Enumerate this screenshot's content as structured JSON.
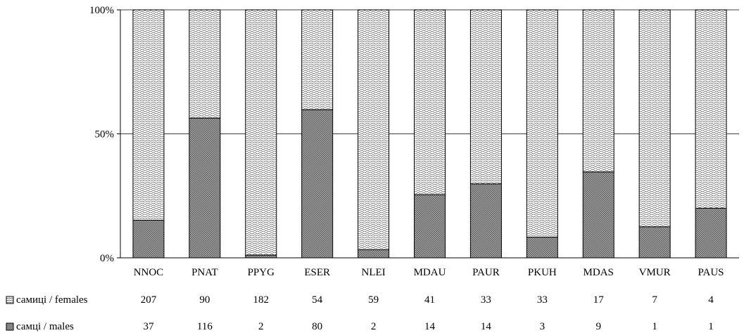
{
  "chart_data": {
    "type": "bar",
    "stacked": "percent",
    "categories": [
      "NNOC",
      "PNAT",
      "PPYG",
      "ESER",
      "NLEI",
      "MDAU",
      "PAUR",
      "PKUH",
      "MDAS",
      "VMUR",
      "PAUS"
    ],
    "series": [
      {
        "name": "самиці / females",
        "values": [
          207,
          90,
          182,
          54,
          59,
          41,
          33,
          33,
          17,
          7,
          4
        ],
        "pattern": "wave",
        "color": "#ffffff"
      },
      {
        "name": "самці / males",
        "values": [
          37,
          116,
          2,
          80,
          2,
          14,
          14,
          3,
          9,
          1,
          1
        ],
        "pattern": "checker",
        "color": "#888888"
      }
    ],
    "y_ticks": [
      "0%",
      "50%",
      "100%"
    ],
    "y_tick_values": [
      0,
      50,
      100
    ],
    "ylim": [
      0,
      100
    ],
    "grid": true,
    "legend_placement": "data-table-below"
  }
}
